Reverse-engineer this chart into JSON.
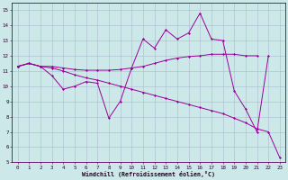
{
  "xlabel": "Windchill (Refroidissement éolien,°C)",
  "x": [
    0,
    1,
    2,
    3,
    4,
    5,
    6,
    7,
    8,
    9,
    10,
    11,
    12,
    13,
    14,
    15,
    16,
    17,
    18,
    19,
    20,
    21,
    22,
    23
  ],
  "line1": [
    11.3,
    11.5,
    11.3,
    11.3,
    11.2,
    11.1,
    11.05,
    11.05,
    11.05,
    11.1,
    11.2,
    11.3,
    11.5,
    11.7,
    11.85,
    11.95,
    12.0,
    12.1,
    12.1,
    12.1,
    12.0,
    12.0,
    null,
    null
  ],
  "line2": [
    11.3,
    11.5,
    11.3,
    10.7,
    9.8,
    10.0,
    10.3,
    10.2,
    7.9,
    9.0,
    11.2,
    13.1,
    12.5,
    13.7,
    13.1,
    13.5,
    14.8,
    13.1,
    13.0,
    9.7,
    8.5,
    7.0,
    12.0,
    null
  ],
  "line3": [
    11.3,
    11.5,
    11.3,
    11.2,
    11.0,
    10.75,
    10.55,
    10.4,
    10.2,
    10.0,
    9.8,
    9.6,
    9.4,
    9.2,
    9.0,
    8.8,
    8.6,
    8.4,
    8.2,
    7.9,
    7.6,
    7.2,
    7.0,
    5.3
  ],
  "line_color": "#990099",
  "bg_color": "#cce8e8",
  "grid_color": "#aabbcc",
  "ylim": [
    5,
    15.5
  ],
  "yticks": [
    5,
    6,
    7,
    8,
    9,
    10,
    11,
    12,
    13,
    14,
    15
  ],
  "xticks": [
    0,
    1,
    2,
    3,
    4,
    5,
    6,
    7,
    8,
    9,
    10,
    11,
    12,
    13,
    14,
    15,
    16,
    17,
    18,
    19,
    20,
    21,
    22,
    23
  ],
  "tick_fontsize": 4.2,
  "xlabel_fontsize": 4.8
}
